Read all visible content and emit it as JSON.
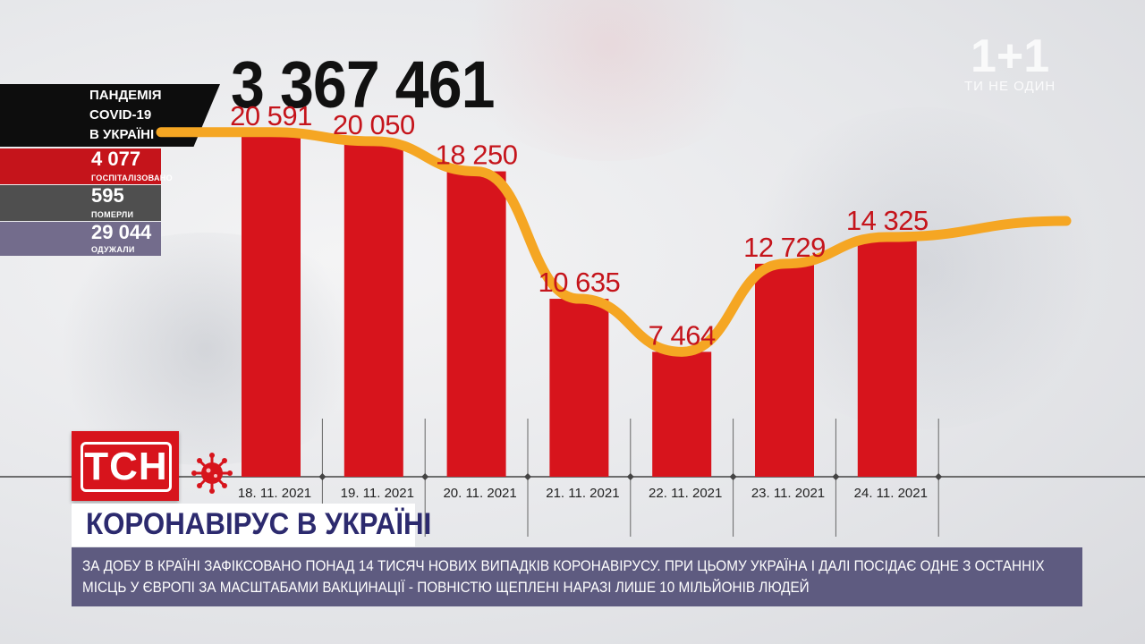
{
  "header": {
    "total": "3 367 461",
    "logo_mark": "1+1",
    "logo_slogan": "ТИ НЕ ОДИН"
  },
  "panel": {
    "title_lines": [
      "ПАНДЕМІЯ",
      "COVID-19",
      "В УКРАЇНІ"
    ],
    "stats": [
      {
        "value": "4 077",
        "label": "ГОСПІТАЛІЗОВАНО",
        "color": "#c5141b"
      },
      {
        "value": "595",
        "label": "ПОМЕРЛИ",
        "color": "#4f4f4f"
      },
      {
        "value": "29 044",
        "label": "ОДУЖАЛИ",
        "color": "#736c8c"
      }
    ]
  },
  "chart_data": {
    "type": "bar",
    "categories": [
      "18. 11. 2021",
      "19. 11. 2021",
      "20. 11. 2021",
      "21. 11. 2021",
      "22. 11. 2021",
      "23. 11. 2021",
      "24. 11. 2021"
    ],
    "values": [
      20591,
      20050,
      18250,
      10635,
      7464,
      12729,
      14325
    ],
    "value_labels": [
      "20 591",
      "20 050",
      "18 250",
      "10 635",
      "7 464",
      "12 729",
      "14 325"
    ],
    "bar_color": "#d7141c",
    "trend_color": "#f5a623",
    "label_color": "#c5141b",
    "ylim": [
      0,
      24000
    ],
    "grid": false,
    "title": "",
    "xlabel": "",
    "ylabel": ""
  },
  "branding": {
    "channel": "ТСН",
    "headline": "КОРОНАВІРУС В УКРАЇНІ",
    "ticker": "ЗА ДОБУ В КРАЇНІ ЗАФІКСОВАНО ПОНАД 14 ТИСЯЧ НОВИХ ВИПАДКІВ КОРОНАВІРУСУ. ПРИ ЦЬОМУ УКРАЇНА І ДАЛІ ПОСІДАЄ ОДНЕ З ОСТАННІХ МІСЦЬ У ЄВРОПІ ЗА МАСШТАБАМИ ВАКЦИНАЦІЇ - ПОВНІСТЮ ЩЕПЛЕНІ НАРАЗІ ЛИШЕ 10 МІЛЬЙОНІВ ЛЮДЕЙ",
    "virus_icon": "virus-icon"
  }
}
